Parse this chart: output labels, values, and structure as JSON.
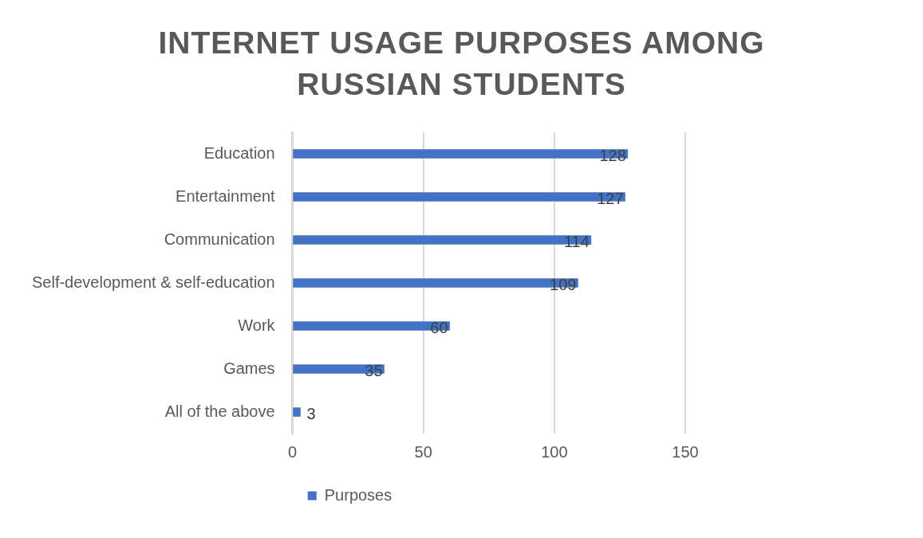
{
  "chart_data": {
    "type": "bar",
    "orientation": "horizontal",
    "title": "INTERNET USAGE PURPOSES AMONG RUSSIAN STUDENTS",
    "categories": [
      "Education",
      "Entertainment",
      "Communication",
      "Self-development & self-education",
      "Work",
      "Games",
      "All of the above"
    ],
    "series": [
      {
        "name": "Purposes",
        "color": "#4472c4",
        "values": [
          128,
          127,
          114,
          109,
          60,
          35,
          3
        ]
      }
    ],
    "xlim": [
      0,
      150
    ],
    "xticks": [
      0,
      50,
      100,
      150
    ],
    "grid": "x",
    "legend": "bottom",
    "data_labels": true
  }
}
